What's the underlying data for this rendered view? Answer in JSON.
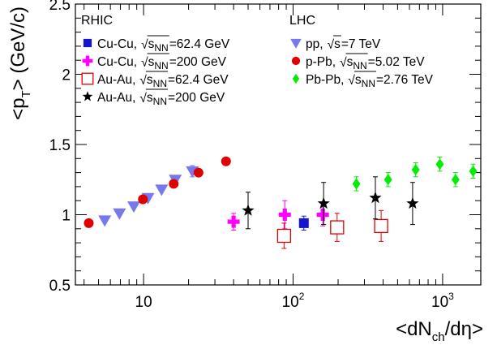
{
  "chart_data": {
    "type": "scatter",
    "x_scale": "log",
    "xlim": [
      3.5,
      1800
    ],
    "ylim": [
      0.5,
      2.5
    ],
    "y_ticks": [
      "0.5",
      "1",
      "1.5",
      "2",
      "2.5"
    ],
    "x_ticks": [
      {
        "value": 10,
        "base": "10",
        "exp": ""
      },
      {
        "value": 100,
        "base": "10",
        "exp": "2"
      },
      {
        "value": 1000,
        "base": "10",
        "exp": "3"
      }
    ],
    "xlabel": {
      "main": "<dN",
      "sub": "ch",
      "tail": "/dη>"
    },
    "ylabel": {
      "main": "<p",
      "sub": "T",
      "tail": "> (GeV/c)"
    },
    "legend_groups": [
      {
        "heading": "RHIC"
      },
      {
        "heading": "LHC"
      }
    ],
    "series": [
      {
        "name": "Cu-Cu, √s_NN=62.4 GeV",
        "label_system": "Cu-Cu,",
        "label_tail": "=62.4 GeV",
        "sqrt_var": "s",
        "sqrt_sub": "NN",
        "group": "RHIC",
        "marker": "square",
        "color": "#1414d2",
        "points": [
          {
            "x": 118,
            "y": 0.94,
            "err": 0.05
          }
        ]
      },
      {
        "name": "Cu-Cu, √s_NN=200 GeV",
        "label_system": "Cu-Cu,",
        "label_tail": "=200 GeV",
        "sqrt_var": "s",
        "sqrt_sub": "NN",
        "group": "RHIC",
        "marker": "cross",
        "color": "#ff00ff",
        "points": [
          {
            "x": 40,
            "y": 0.95,
            "err": 0.06
          },
          {
            "x": 88,
            "y": 1.0,
            "err": 0.1
          },
          {
            "x": 158,
            "y": 1.0,
            "err": 0.08
          }
        ]
      },
      {
        "name": "Au-Au, √s_NN=62.4 GeV",
        "label_system": "Au-Au,",
        "label_tail": "=62.4 GeV",
        "sqrt_var": "s",
        "sqrt_sub": "NN",
        "group": "RHIC",
        "marker": "open-square",
        "color": "#e00000",
        "points": [
          {
            "x": 87,
            "y": 0.85,
            "err": 0.09
          },
          {
            "x": 197,
            "y": 0.91,
            "err": 0.1
          },
          {
            "x": 388,
            "y": 0.92,
            "err": 0.11
          }
        ]
      },
      {
        "name": "Au-Au, √s_NN=200 GeV",
        "label_system": "Au-Au,",
        "label_tail": "=200 GeV",
        "sqrt_var": "s",
        "sqrt_sub": "NN",
        "group": "RHIC",
        "marker": "star",
        "color": "#000000",
        "points": [
          {
            "x": 50,
            "y": 1.03,
            "err": 0.13
          },
          {
            "x": 160,
            "y": 1.08,
            "err": 0.15
          },
          {
            "x": 355,
            "y": 1.12,
            "err": 0.15
          },
          {
            "x": 630,
            "y": 1.08,
            "err": 0.15
          }
        ]
      },
      {
        "name": "pp, √s=7 TeV",
        "label_system": "pp,",
        "label_tail": "=7 TeV",
        "sqrt_var": "s",
        "sqrt_sub": "",
        "group": "LHC",
        "marker": "triangle-down",
        "color": "#7777ee",
        "points": [
          {
            "x": 5.5,
            "y": 0.96,
            "err": 0.01
          },
          {
            "x": 6.9,
            "y": 1.01,
            "err": 0.01
          },
          {
            "x": 8.6,
            "y": 1.06,
            "err": 0.01
          },
          {
            "x": 10.7,
            "y": 1.12,
            "err": 0.01
          },
          {
            "x": 13.2,
            "y": 1.18,
            "err": 0.01
          },
          {
            "x": 16.3,
            "y": 1.25,
            "err": 0.01
          },
          {
            "x": 21.2,
            "y": 1.31,
            "err": 0.04
          }
        ]
      },
      {
        "name": "p-Pb, √s_NN=5.02 TeV",
        "label_system": "p-Pb,",
        "label_tail": "=5.02 TeV",
        "sqrt_var": "s",
        "sqrt_sub": "NN",
        "group": "LHC",
        "marker": "circle",
        "color": "#e00000",
        "points": [
          {
            "x": 4.3,
            "y": 0.94,
            "err": 0.0
          },
          {
            "x": 9.9,
            "y": 1.11,
            "err": 0.0
          },
          {
            "x": 15.9,
            "y": 1.22,
            "err": 0.0
          },
          {
            "x": 23.3,
            "y": 1.3,
            "err": 0.0
          },
          {
            "x": 35.6,
            "y": 1.38,
            "err": 0.0
          }
        ]
      },
      {
        "name": "Pb-Pb, √s_NN=2.76 TeV",
        "label_system": "Pb-Pb,",
        "label_tail": "=2.76 TeV",
        "sqrt_var": "s",
        "sqrt_sub": "NN",
        "group": "LHC",
        "marker": "diamond",
        "color": "#00ee00",
        "points": [
          {
            "x": 265,
            "y": 1.22,
            "err": 0.05
          },
          {
            "x": 432,
            "y": 1.25,
            "err": 0.05
          },
          {
            "x": 660,
            "y": 1.32,
            "err": 0.05
          },
          {
            "x": 958,
            "y": 1.36,
            "err": 0.05
          },
          {
            "x": 1220,
            "y": 1.25,
            "err": 0.05
          },
          {
            "x": 1600,
            "y": 1.31,
            "err": 0.05
          }
        ]
      }
    ]
  }
}
